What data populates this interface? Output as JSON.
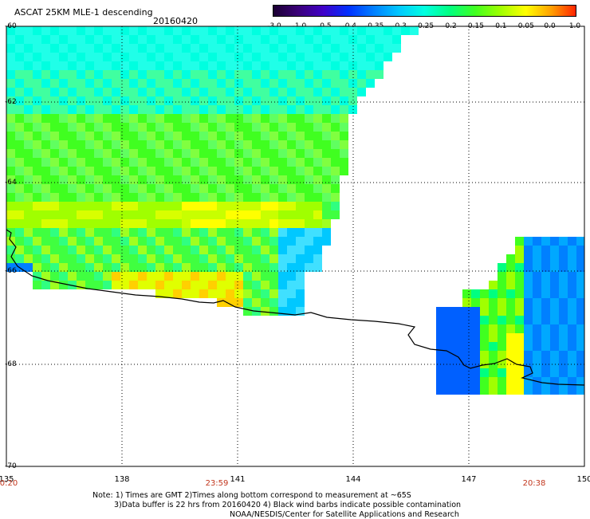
{
  "header": {
    "title": "ASCAT 25KM MLE-1 descending",
    "date": "20160420"
  },
  "colorbar": {
    "ticks": [
      "-3.0",
      "-1.0",
      "-0.5",
      "-0.4",
      "-0.35",
      "-0.3",
      "-0.25",
      "-0.2",
      "-0.15",
      "-0.1",
      "-0.05",
      "0.0",
      "1.0"
    ],
    "colors": [
      "#1a0030",
      "#3a0078",
      "#4000c8",
      "#0030ff",
      "#0080ff",
      "#00c8ff",
      "#00ffe0",
      "#00ff80",
      "#40ff20",
      "#a0ff00",
      "#ffff00",
      "#ffa000",
      "#ff2000"
    ]
  },
  "map": {
    "lon_ticks": [
      "135",
      "138",
      "141",
      "144",
      "147",
      "150"
    ],
    "lat_ticks": [
      "-60",
      "-62",
      "-64",
      "-66",
      "-68",
      "-70"
    ],
    "time_labels": [
      "0:20",
      "23:59",
      "20:38"
    ]
  },
  "notes": {
    "line1": "Note: 1) Times are GMT 2)Times along bottom correspond to measurement at ~65S",
    "line2": "3)Data buffer is 22 hrs from 20160420 4) Black wind barbs indicate possible contamination",
    "line3": "NOAA/NESDIS/Center for Satellite Applications and Research"
  }
}
